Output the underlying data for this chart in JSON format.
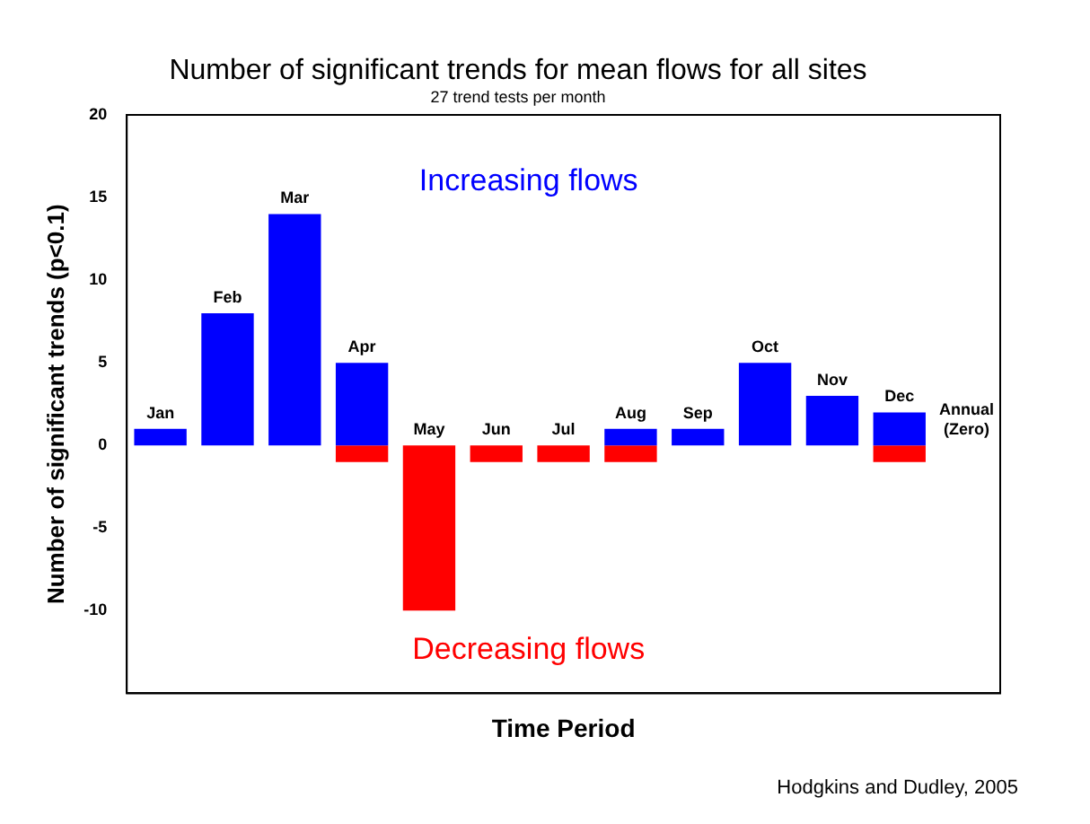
{
  "chart_data": {
    "type": "bar",
    "title": "Number of significant trends for mean flows for all sites",
    "subtitle": "27 trend tests per month",
    "xlabel": "Time Period",
    "ylabel": "Number of significant trends (p<0.1)",
    "categories": [
      "Jan",
      "Feb",
      "Mar",
      "Apr",
      "May",
      "Jun",
      "Jul",
      "Aug",
      "Sep",
      "Oct",
      "Nov",
      "Dec",
      "Annual (Zero)"
    ],
    "stacked": true,
    "series": [
      {
        "name": "Increasing flows",
        "color": "#0000ff",
        "values": [
          1,
          8,
          14,
          5,
          0,
          0,
          0,
          1,
          1,
          5,
          3,
          2,
          0
        ]
      },
      {
        "name": "Decreasing flows",
        "color": "#ff0000",
        "values": [
          0,
          0,
          0,
          -1,
          -10,
          -1,
          -1,
          -1,
          0,
          0,
          0,
          -1,
          0
        ]
      }
    ],
    "ylim": [
      -15,
      20
    ],
    "yticks": [
      -10,
      -5,
      0,
      5,
      10,
      15,
      20
    ],
    "tick_labels": "y",
    "grid": false,
    "legend": false,
    "annotations": [
      "Hodgkins and Dudley, 2005"
    ]
  }
}
